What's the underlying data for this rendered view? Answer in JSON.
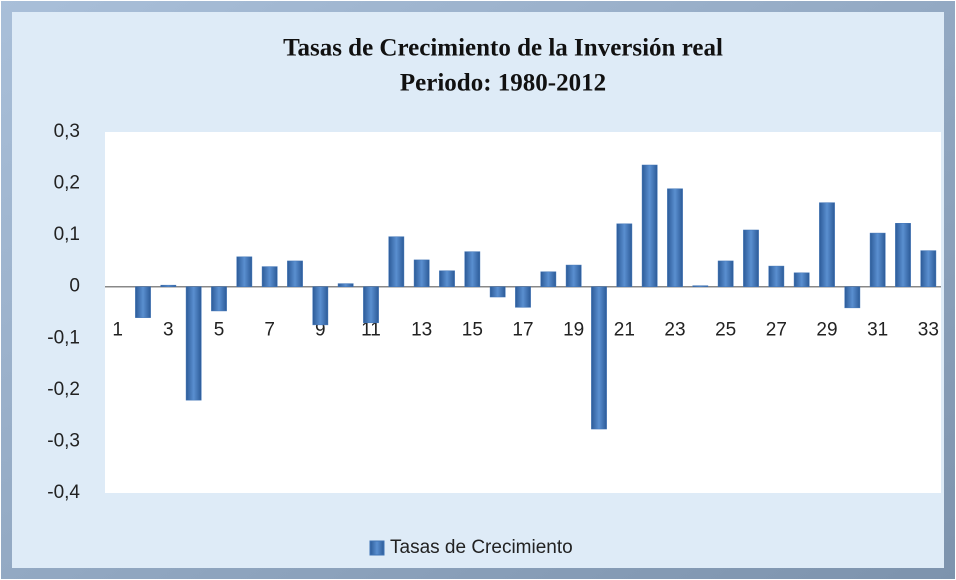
{
  "chart_data": {
    "type": "bar",
    "title": "Tasas de Crecimiento de la Inversión real",
    "subtitle": "Periodo: 1980-2012",
    "categories": [
      1,
      null,
      3,
      null,
      5,
      null,
      7,
      null,
      9,
      null,
      11,
      null,
      13,
      null,
      15,
      null,
      17,
      null,
      19,
      null,
      21,
      null,
      23,
      null,
      25,
      null,
      27,
      null,
      29,
      null,
      31,
      null,
      33
    ],
    "series": [
      {
        "name": "Tasas de Crecimiento",
        "color": "#3f73b5",
        "values": [
          0,
          -0.06,
          0.003,
          -0.22,
          -0.047,
          0.058,
          0.039,
          0.05,
          -0.074,
          0.006,
          -0.07,
          0.097,
          0.052,
          0.031,
          0.068,
          -0.02,
          -0.04,
          0.029,
          0.042,
          -0.276,
          0.122,
          0.236,
          0.19,
          0.002,
          0.05,
          0.11,
          0.04,
          0.027,
          0.163,
          -0.041,
          0.104,
          0.123,
          0.07
        ]
      }
    ],
    "ylim": [
      -0.4,
      0.3
    ],
    "yticks": [
      {
        "value": 0.3,
        "label": "0,3"
      },
      {
        "value": 0.2,
        "label": "0,2"
      },
      {
        "value": 0.1,
        "label": "0,1"
      },
      0,
      {
        "value": -0.1,
        "label": "-0,1"
      },
      {
        "value": -0.2,
        "label": "-0,2"
      },
      {
        "value": -0.3,
        "label": "-0,3"
      },
      {
        "value": -0.4,
        "label": "-0,4"
      }
    ],
    "legend": "bottom"
  }
}
